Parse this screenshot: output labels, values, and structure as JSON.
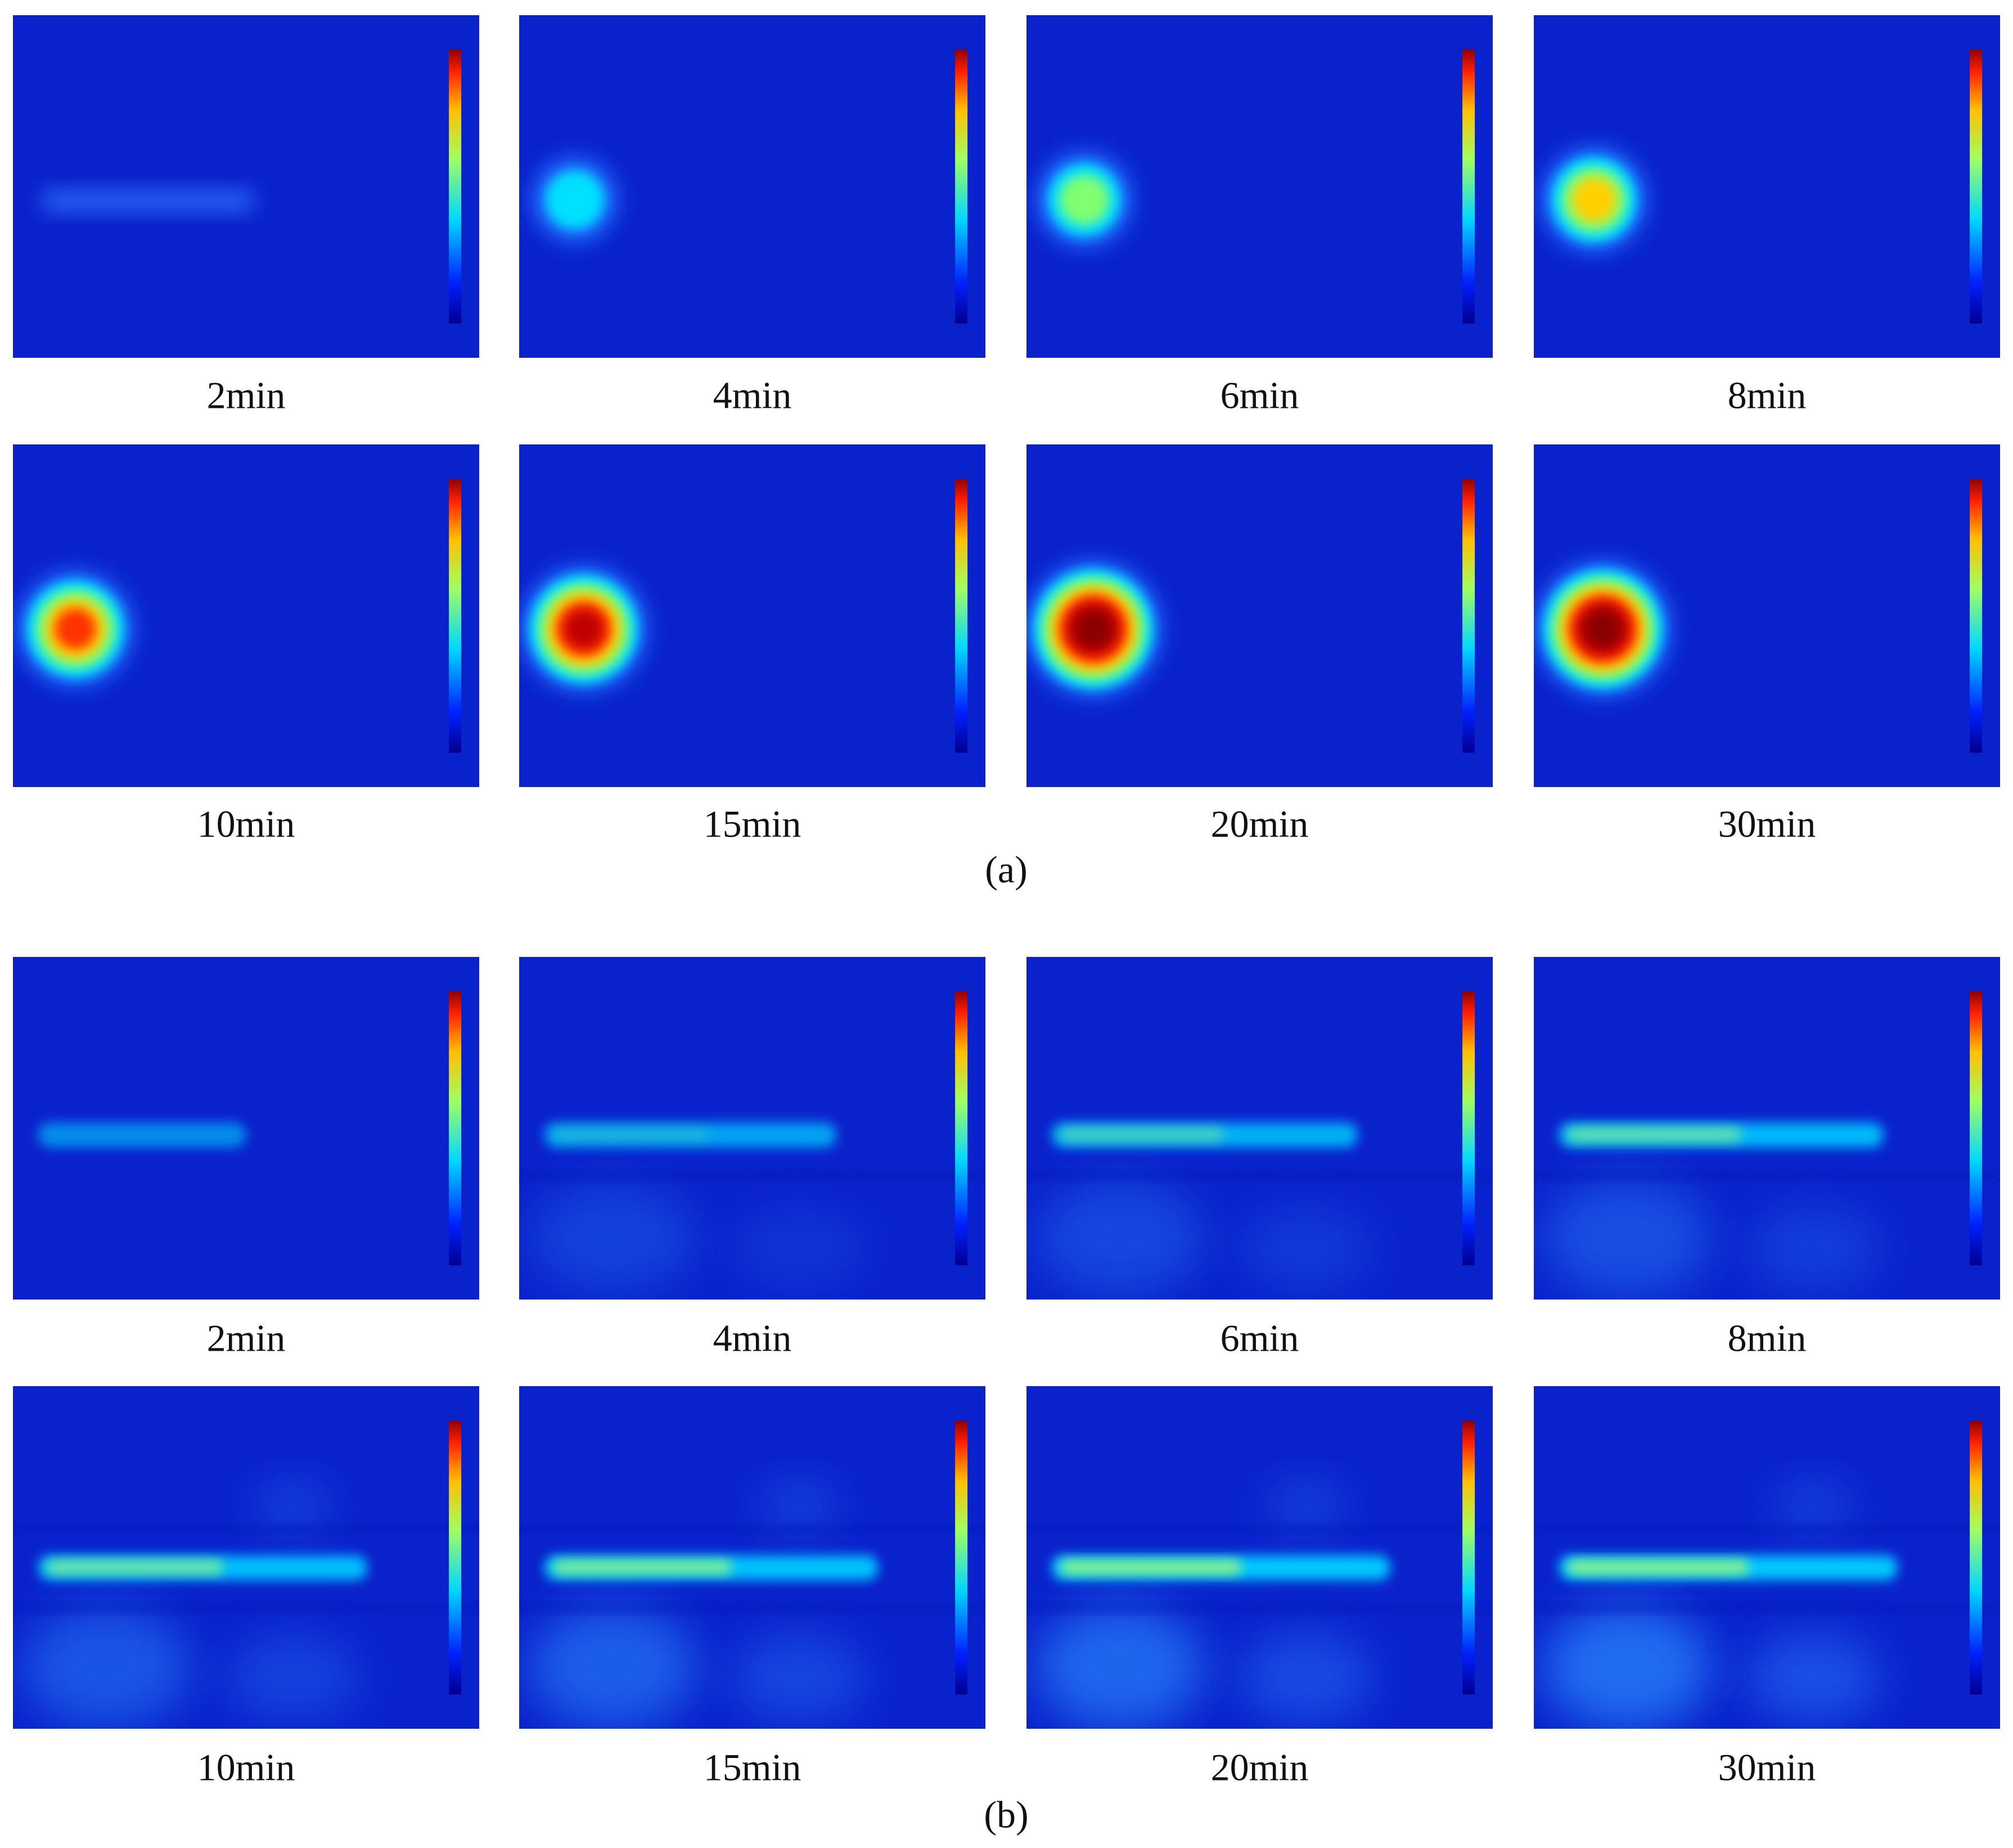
{
  "figure": {
    "parts": [
      {
        "label": "(a)",
        "panels": [
          {
            "caption": "2min"
          },
          {
            "caption": "4min"
          },
          {
            "caption": "6min"
          },
          {
            "caption": "8min"
          },
          {
            "caption": "10min"
          },
          {
            "caption": "15min"
          },
          {
            "caption": "20min"
          },
          {
            "caption": "30min"
          }
        ]
      },
      {
        "label": "(b)",
        "panels": [
          {
            "caption": "2min"
          },
          {
            "caption": "4min"
          },
          {
            "caption": "6min"
          },
          {
            "caption": "8min"
          },
          {
            "caption": "10min"
          },
          {
            "caption": "15min"
          },
          {
            "caption": "20min"
          },
          {
            "caption": "30min"
          }
        ]
      }
    ]
  }
}
